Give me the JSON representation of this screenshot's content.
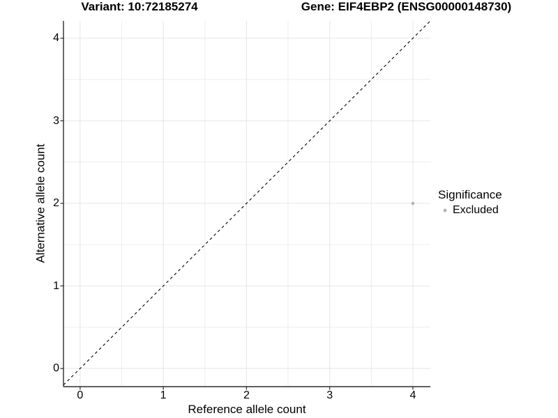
{
  "titles": {
    "left": "Variant: 10:72185274",
    "right": "Gene: EIF4EBP2 (ENSG00000148730)"
  },
  "chart_data": {
    "type": "scatter",
    "xlabel": "Reference allele count",
    "ylabel": "Alternative allele count",
    "xlim": [
      -0.2,
      4.21
    ],
    "ylim": [
      -0.22,
      4.21
    ],
    "x_breaks": [
      0,
      1,
      2,
      3,
      4
    ],
    "y_breaks": [
      0,
      1,
      2,
      3,
      4
    ],
    "x_minor_breaks": [
      0.5,
      1.5,
      2.5,
      3.5
    ],
    "y_minor_breaks": [
      0.5,
      1.5,
      2.5,
      3.5
    ],
    "grid": true,
    "points": [
      {
        "x": 4,
        "y": 2,
        "significance": "Excluded",
        "color": "#b3b3b3"
      }
    ],
    "reference_line": {
      "type": "identity",
      "style": "dashed",
      "color": "#000000"
    },
    "legend": {
      "title": "Significance",
      "position": "right",
      "entries": [
        {
          "label": "Excluded",
          "color": "#b3b3b3"
        }
      ]
    }
  },
  "colors": {
    "background": "#ffffff",
    "axis_line": "#2b2b2b",
    "grid_major": "#e5e5e5",
    "grid_minor": "#ededed",
    "text": "#000000",
    "point": "#b3b3b3"
  }
}
